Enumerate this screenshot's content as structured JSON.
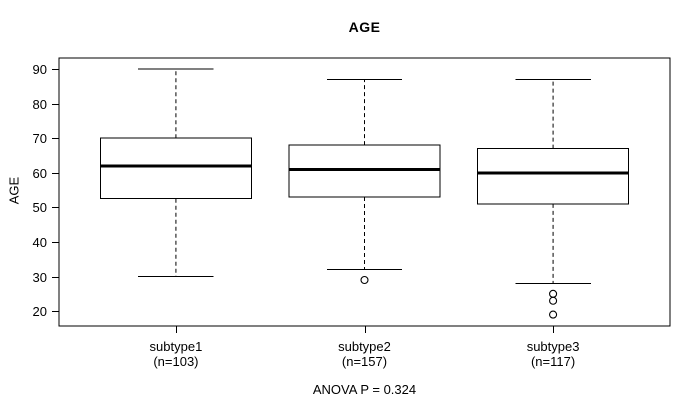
{
  "figure": {
    "title": "AGE",
    "y_axis_label": "AGE",
    "annotation": "ANOVA P = 0.324"
  },
  "chart_data": {
    "type": "boxplot",
    "title": "AGE",
    "xlabel": "",
    "ylabel": "AGE",
    "ylim": [
      15.7,
      93.2
    ],
    "yticks": [
      20,
      30,
      40,
      50,
      60,
      70,
      80,
      90
    ],
    "grid": false,
    "categories": [
      "subtype1",
      "subtype2",
      "subtype3"
    ],
    "category_sublabels": [
      "(n=103)",
      "(n=157)",
      "(n=117)"
    ],
    "series": [
      {
        "name": "subtype1",
        "n": 103,
        "whisker_low": 30,
        "q1": 52.5,
        "median": 62,
        "q3": 70,
        "whisker_high": 90,
        "outliers": []
      },
      {
        "name": "subtype2",
        "n": 157,
        "whisker_low": 32,
        "q1": 53,
        "median": 61,
        "q3": 68,
        "whisker_high": 87,
        "outliers": [
          29
        ]
      },
      {
        "name": "subtype3",
        "n": 117,
        "whisker_low": 28,
        "q1": 51,
        "median": 60,
        "q3": 67,
        "whisker_high": 87,
        "outliers": [
          25,
          23,
          19
        ]
      }
    ],
    "annotation": "ANOVA P = 0.324",
    "colors": {
      "line": "#000000",
      "box_fill": "#ffffff",
      "background": "#ffffff"
    }
  }
}
